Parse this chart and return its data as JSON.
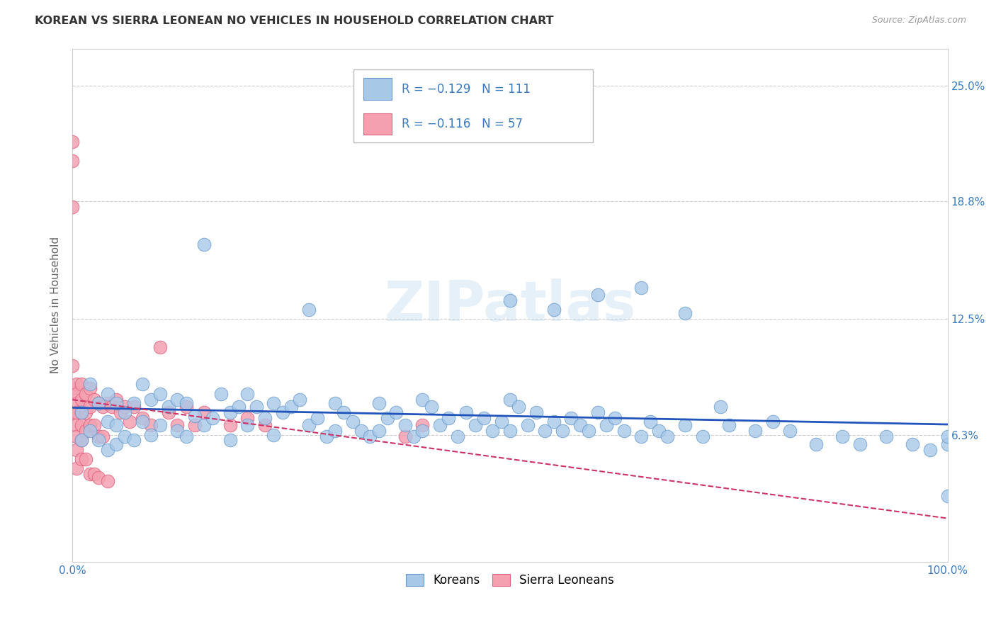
{
  "title": "KOREAN VS SIERRA LEONEAN NO VEHICLES IN HOUSEHOLD CORRELATION CHART",
  "source": "Source: ZipAtlas.com",
  "ylabel": "No Vehicles in Household",
  "watermark": "ZIPatlas",
  "ytick_labels": [
    "6.3%",
    "12.5%",
    "18.8%",
    "25.0%"
  ],
  "ytick_values": [
    0.063,
    0.125,
    0.188,
    0.25
  ],
  "xlim": [
    0.0,
    1.0
  ],
  "ylim": [
    -0.005,
    0.27
  ],
  "korean_color": "#a8c8e8",
  "sierra_color": "#f4a0b0",
  "korean_edge": "#6699cc",
  "sierra_edge": "#e06080",
  "trend_korean_color": "#2255bb",
  "trend_sierra_color": "#cc3366",
  "background_color": "#ffffff",
  "grid_color": "#cccccc",
  "title_color": "#333333",
  "axis_color": "#3a7abf",
  "legend_r1": "R = −0.129   N = 111",
  "legend_r2": "R = −0.116   N = 57",
  "korean_x": [
    0.01,
    0.01,
    0.02,
    0.02,
    0.03,
    0.03,
    0.04,
    0.04,
    0.04,
    0.05,
    0.05,
    0.05,
    0.06,
    0.06,
    0.07,
    0.07,
    0.08,
    0.08,
    0.09,
    0.09,
    0.1,
    0.1,
    0.11,
    0.12,
    0.12,
    0.13,
    0.13,
    0.14,
    0.15,
    0.16,
    0.17,
    0.18,
    0.18,
    0.19,
    0.2,
    0.2,
    0.21,
    0.22,
    0.23,
    0.23,
    0.24,
    0.25,
    0.26,
    0.27,
    0.28,
    0.29,
    0.3,
    0.3,
    0.31,
    0.32,
    0.33,
    0.34,
    0.35,
    0.35,
    0.36,
    0.37,
    0.38,
    0.39,
    0.4,
    0.4,
    0.41,
    0.42,
    0.43,
    0.44,
    0.45,
    0.46,
    0.47,
    0.48,
    0.49,
    0.5,
    0.5,
    0.51,
    0.52,
    0.53,
    0.54,
    0.55,
    0.56,
    0.57,
    0.58,
    0.59,
    0.6,
    0.61,
    0.62,
    0.63,
    0.65,
    0.66,
    0.67,
    0.68,
    0.7,
    0.72,
    0.74,
    0.75,
    0.78,
    0.8,
    0.82,
    0.85,
    0.88,
    0.9,
    0.93,
    0.96,
    0.98,
    1.0,
    1.0,
    1.0,
    0.27,
    0.5,
    0.55,
    0.6,
    0.65,
    0.7,
    0.15
  ],
  "korean_y": [
    0.075,
    0.06,
    0.09,
    0.065,
    0.08,
    0.06,
    0.085,
    0.07,
    0.055,
    0.08,
    0.068,
    0.058,
    0.075,
    0.062,
    0.08,
    0.06,
    0.09,
    0.07,
    0.082,
    0.063,
    0.085,
    0.068,
    0.078,
    0.082,
    0.065,
    0.08,
    0.062,
    0.073,
    0.068,
    0.072,
    0.085,
    0.075,
    0.06,
    0.078,
    0.085,
    0.068,
    0.078,
    0.072,
    0.08,
    0.063,
    0.075,
    0.078,
    0.082,
    0.068,
    0.072,
    0.062,
    0.08,
    0.065,
    0.075,
    0.07,
    0.065,
    0.062,
    0.08,
    0.065,
    0.072,
    0.075,
    0.068,
    0.062,
    0.082,
    0.065,
    0.078,
    0.068,
    0.072,
    0.062,
    0.075,
    0.068,
    0.072,
    0.065,
    0.07,
    0.082,
    0.065,
    0.078,
    0.068,
    0.075,
    0.065,
    0.07,
    0.065,
    0.072,
    0.068,
    0.065,
    0.075,
    0.068,
    0.072,
    0.065,
    0.062,
    0.07,
    0.065,
    0.062,
    0.068,
    0.062,
    0.078,
    0.068,
    0.065,
    0.07,
    0.065,
    0.058,
    0.062,
    0.058,
    0.062,
    0.058,
    0.055,
    0.058,
    0.062,
    0.03,
    0.13,
    0.135,
    0.13,
    0.138,
    0.142,
    0.128,
    0.165
  ],
  "sierra_x": [
    0.0,
    0.0,
    0.0,
    0.0,
    0.0,
    0.0,
    0.005,
    0.005,
    0.005,
    0.005,
    0.005,
    0.005,
    0.005,
    0.005,
    0.01,
    0.01,
    0.01,
    0.01,
    0.01,
    0.01,
    0.015,
    0.015,
    0.015,
    0.015,
    0.02,
    0.02,
    0.02,
    0.02,
    0.025,
    0.025,
    0.025,
    0.03,
    0.03,
    0.03,
    0.035,
    0.035,
    0.04,
    0.04,
    0.045,
    0.05,
    0.055,
    0.06,
    0.065,
    0.07,
    0.08,
    0.09,
    0.1,
    0.11,
    0.12,
    0.13,
    0.14,
    0.15,
    0.18,
    0.2,
    0.22,
    0.38,
    0.4
  ],
  "sierra_y": [
    0.22,
    0.21,
    0.185,
    0.1,
    0.088,
    0.075,
    0.09,
    0.085,
    0.08,
    0.075,
    0.068,
    0.062,
    0.055,
    0.045,
    0.09,
    0.082,
    0.075,
    0.068,
    0.06,
    0.05,
    0.085,
    0.075,
    0.065,
    0.05,
    0.088,
    0.078,
    0.068,
    0.042,
    0.082,
    0.068,
    0.042,
    0.08,
    0.062,
    0.04,
    0.078,
    0.062,
    0.08,
    0.038,
    0.078,
    0.082,
    0.075,
    0.078,
    0.07,
    0.078,
    0.072,
    0.068,
    0.11,
    0.075,
    0.068,
    0.078,
    0.068,
    0.075,
    0.068,
    0.072,
    0.068,
    0.062,
    0.068
  ]
}
